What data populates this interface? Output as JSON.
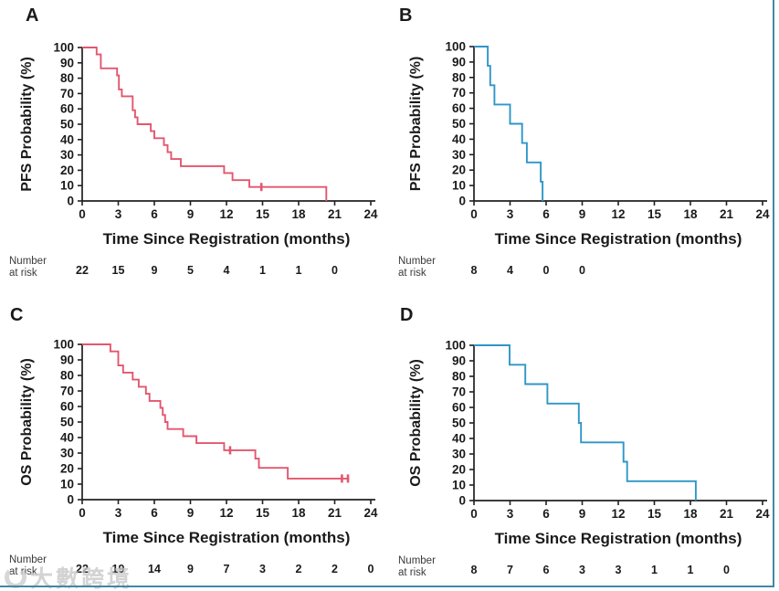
{
  "figure": {
    "xlabel": "Time Since Registration (months)",
    "risk_header_line1": "Number",
    "risk_header_line2": "at risk",
    "axis_color": "#231f20",
    "text_color": "#1a1a1a",
    "pfs_color": "#e4566e",
    "os_blue_color": "#2e96c8",
    "frame_border_color": "#4288a6"
  },
  "watermark": {
    "text": "大數跨境"
  },
  "chart_data": [
    {
      "type": "line",
      "variant": "kaplan-meier-step",
      "letter": "A",
      "ylabel": "PFS Probability (%)",
      "xlabel": "Time Since Registration (months)",
      "color": "#e4566e",
      "xlim": [
        0,
        24
      ],
      "ylim": [
        0,
        100
      ],
      "x_ticks": [
        0,
        3,
        6,
        9,
        12,
        15,
        18,
        21,
        24
      ],
      "y_ticks": [
        0,
        10,
        20,
        30,
        40,
        50,
        60,
        70,
        80,
        90,
        100
      ],
      "start": [
        0,
        100
      ],
      "steps": [
        [
          1.2,
          95.5
        ],
        [
          1.55,
          86.4
        ],
        [
          2.9,
          81.8
        ],
        [
          3.05,
          72.7
        ],
        [
          3.3,
          68.2
        ],
        [
          4.2,
          59.1
        ],
        [
          4.4,
          54.5
        ],
        [
          4.6,
          50
        ],
        [
          5.7,
          45.5
        ],
        [
          6.0,
          40.9
        ],
        [
          6.8,
          36.4
        ],
        [
          7.1,
          31.8
        ],
        [
          7.4,
          27.3
        ],
        [
          8.2,
          22.7
        ],
        [
          11.8,
          18.2
        ],
        [
          12.5,
          13.6
        ],
        [
          13.9,
          9.1
        ],
        [
          20.3,
          0
        ]
      ],
      "end_time": 20.3,
      "censors": [
        [
          14.9,
          9.1
        ]
      ],
      "number_at_risk": {
        "times": [
          0,
          3,
          6,
          9,
          12,
          15,
          18,
          21
        ],
        "counts": [
          22,
          15,
          9,
          5,
          4,
          1,
          1,
          0
        ]
      }
    },
    {
      "type": "line",
      "variant": "kaplan-meier-step",
      "letter": "B",
      "ylabel": "PFS Probability (%)",
      "xlabel": "Time Since Registration (months)",
      "color": "#2e96c8",
      "xlim": [
        0,
        24
      ],
      "ylim": [
        0,
        100
      ],
      "x_ticks": [
        0,
        3,
        6,
        9,
        12,
        15,
        18,
        21,
        24
      ],
      "y_ticks": [
        0,
        10,
        20,
        30,
        40,
        50,
        60,
        70,
        80,
        90,
        100
      ],
      "start": [
        0,
        100
      ],
      "steps": [
        [
          1.15,
          87.5
        ],
        [
          1.35,
          75
        ],
        [
          1.7,
          62.5
        ],
        [
          3.0,
          50
        ],
        [
          4.0,
          37.5
        ],
        [
          4.4,
          25
        ],
        [
          5.55,
          12.5
        ],
        [
          5.7,
          0
        ]
      ],
      "end_time": 5.7,
      "censors": [],
      "number_at_risk": {
        "times": [
          0,
          3,
          6,
          9
        ],
        "counts": [
          8,
          4,
          0,
          0
        ]
      }
    },
    {
      "type": "line",
      "variant": "kaplan-meier-step",
      "letter": "C",
      "ylabel": "OS Probability (%)",
      "xlabel": "Time Since Registration (months)",
      "color": "#e4566e",
      "xlim": [
        0,
        24
      ],
      "ylim": [
        0,
        100
      ],
      "x_ticks": [
        0,
        3,
        6,
        9,
        12,
        15,
        18,
        21,
        24
      ],
      "y_ticks": [
        0,
        10,
        20,
        30,
        40,
        50,
        60,
        70,
        80,
        90,
        100
      ],
      "start": [
        0,
        100
      ],
      "steps": [
        [
          2.35,
          95.5
        ],
        [
          3.0,
          86.4
        ],
        [
          3.4,
          81.8
        ],
        [
          4.2,
          77.3
        ],
        [
          4.7,
          72.7
        ],
        [
          5.3,
          68.2
        ],
        [
          5.6,
          63.6
        ],
        [
          6.5,
          59.1
        ],
        [
          6.7,
          54.5
        ],
        [
          6.9,
          50
        ],
        [
          7.1,
          45.5
        ],
        [
          8.4,
          40.9
        ],
        [
          9.5,
          36.4
        ],
        [
          11.8,
          31.8
        ],
        [
          14.4,
          26.4
        ],
        [
          14.7,
          20.5
        ],
        [
          17.1,
          13.6
        ]
      ],
      "end_time": 22.2,
      "censors": [
        [
          12.3,
          31.8
        ],
        [
          21.6,
          13.6
        ],
        [
          22.1,
          13.6
        ]
      ],
      "number_at_risk": {
        "times": [
          0,
          3,
          6,
          9,
          12,
          15,
          18,
          21,
          24
        ],
        "counts": [
          22,
          19,
          14,
          9,
          7,
          3,
          2,
          2,
          0
        ]
      }
    },
    {
      "type": "line",
      "variant": "kaplan-meier-step",
      "letter": "D",
      "ylabel": "OS Probability (%)",
      "xlabel": "Time Since Registration (months)",
      "color": "#2e96c8",
      "xlim": [
        0,
        24
      ],
      "ylim": [
        0,
        100
      ],
      "x_ticks": [
        0,
        3,
        6,
        9,
        12,
        15,
        18,
        21,
        24
      ],
      "y_ticks": [
        0,
        10,
        20,
        30,
        40,
        50,
        60,
        70,
        80,
        90,
        100
      ],
      "start": [
        0,
        100
      ],
      "steps": [
        [
          2.96,
          87.5
        ],
        [
          4.27,
          75
        ],
        [
          6.11,
          62.5
        ],
        [
          8.72,
          50
        ],
        [
          8.9,
          37.5
        ],
        [
          12.43,
          25
        ],
        [
          12.74,
          12.5
        ],
        [
          18.45,
          0
        ]
      ],
      "end_time": 18.45,
      "censors": [],
      "number_at_risk": {
        "times": [
          0,
          3,
          6,
          9,
          12,
          15,
          18,
          21
        ],
        "counts": [
          8,
          7,
          6,
          3,
          3,
          1,
          1,
          0
        ]
      }
    }
  ]
}
